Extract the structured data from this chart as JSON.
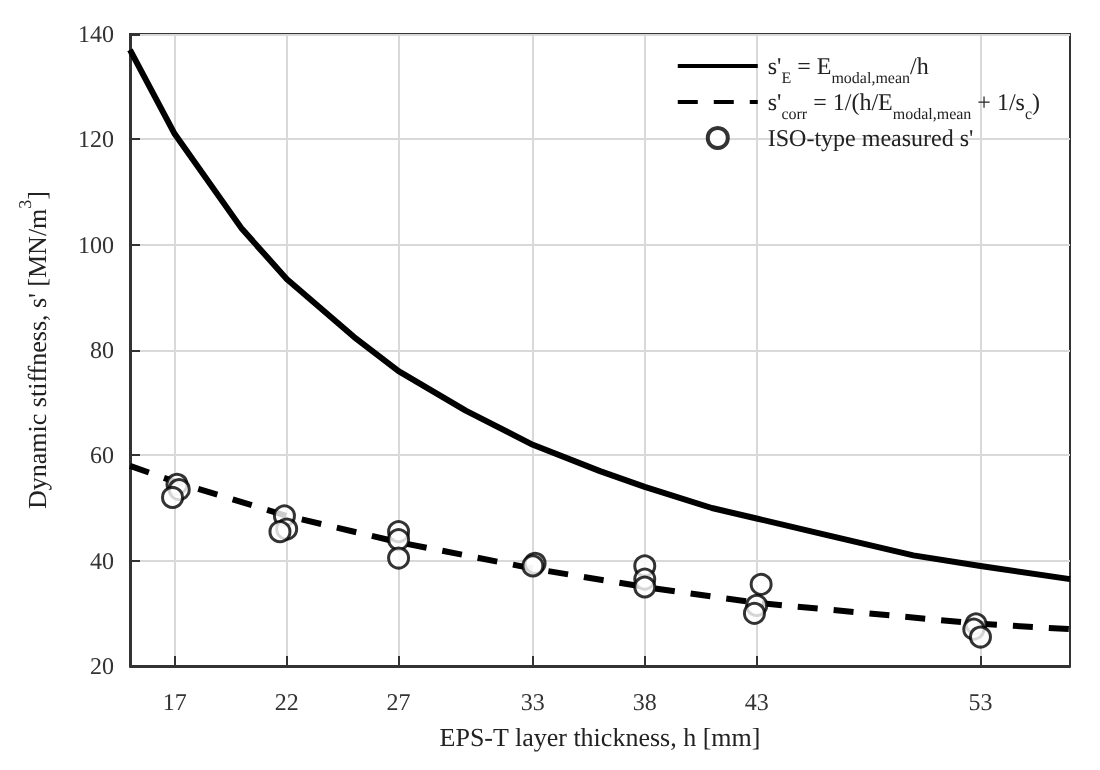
{
  "chart_data": {
    "type": "line",
    "xlabel": "EPS-T layer thickness, h [mm]",
    "ylabel": "Dynamic stiffness, s' [MN/m$^{3}$]",
    "xlim": [
      15,
      57
    ],
    "xticks": [
      17,
      22,
      27,
      33,
      38,
      43,
      53
    ],
    "ylim": [
      20,
      140
    ],
    "yticks": [
      20,
      40,
      60,
      80,
      100,
      120,
      140
    ],
    "grid": true,
    "legend": "top right",
    "series": [
      {
        "name": "s'$_{E}$ = E$_{modal,mean}$/h",
        "color": "#000000",
        "line_style": "solid",
        "marker": "none",
        "x": [
          15,
          17,
          20,
          22,
          25,
          27,
          30,
          33,
          36,
          38,
          41,
          43,
          46,
          50,
          53,
          57
        ],
        "values": [
          137,
          121,
          103,
          93.5,
          82.5,
          76,
          68.5,
          62,
          57,
          54,
          50,
          48,
          45,
          41,
          39,
          36.5
        ]
      },
      {
        "name": "s'$_{corr}$ = 1/(h/E$_{modal,mean}$ + 1/s$_{c}$)",
        "color": "#000000",
        "line_style": "dashed",
        "marker": "none",
        "x": [
          15,
          17,
          22,
          27,
          33,
          38,
          43,
          48,
          53,
          57
        ],
        "values": [
          58,
          55,
          48.5,
          43.5,
          38.5,
          35,
          32,
          30,
          28,
          27
        ]
      },
      {
        "name": "ISO-type measured s'",
        "type": "scatter",
        "color": "#000000",
        "marker": "circle",
        "x": [
          17.1,
          17.2,
          16.9,
          21.9,
          22,
          21.7,
          27,
          27,
          27,
          33.1,
          33,
          38,
          38,
          38,
          43.2,
          43,
          42.9,
          52.8,
          52.7,
          53
        ],
        "values": [
          54.5,
          53.5,
          52,
          48.5,
          46,
          45.5,
          45.5,
          44,
          40.5,
          39.5,
          39,
          39,
          36.5,
          35,
          35.5,
          31.5,
          30,
          28,
          27,
          25.5
        ]
      }
    ]
  }
}
